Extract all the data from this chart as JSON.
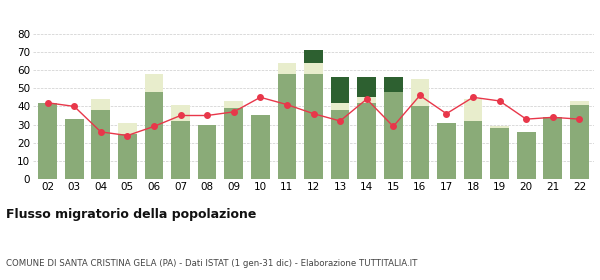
{
  "years": [
    "02",
    "03",
    "04",
    "05",
    "06",
    "07",
    "08",
    "09",
    "10",
    "11",
    "12",
    "13",
    "14",
    "15",
    "16",
    "17",
    "18",
    "19",
    "20",
    "21",
    "22"
  ],
  "iscritti_comuni": [
    42,
    33,
    38,
    25,
    48,
    32,
    30,
    39,
    35,
    58,
    58,
    38,
    42,
    48,
    40,
    31,
    32,
    28,
    26,
    34,
    41
  ],
  "iscritti_estero": [
    0,
    0,
    6,
    6,
    10,
    9,
    0,
    4,
    0,
    6,
    6,
    4,
    3,
    0,
    15,
    0,
    12,
    1,
    0,
    0,
    2
  ],
  "iscritti_altri": [
    0,
    0,
    0,
    0,
    0,
    0,
    0,
    0,
    0,
    0,
    7,
    14,
    11,
    8,
    0,
    0,
    0,
    0,
    0,
    0,
    0
  ],
  "cancellati": [
    42,
    40,
    26,
    24,
    29,
    35,
    35,
    37,
    45,
    41,
    36,
    32,
    44,
    29,
    46,
    36,
    45,
    43,
    33,
    34,
    33
  ],
  "color_comuni": "#8aab78",
  "color_estero": "#e8edcc",
  "color_altri": "#2d6030",
  "color_cancellati": "#e8374a",
  "title": "Flusso migratorio della popolazione",
  "subtitle": "COMUNE DI SANTA CRISTINA GELA (PA) - Dati ISTAT (1 gen-31 dic) - Elaborazione TUTTITALIA.IT",
  "ylim": [
    0,
    80
  ],
  "yticks": [
    0,
    10,
    20,
    30,
    40,
    50,
    60,
    70,
    80
  ],
  "background_color": "#ffffff",
  "grid_color": "#cccccc"
}
